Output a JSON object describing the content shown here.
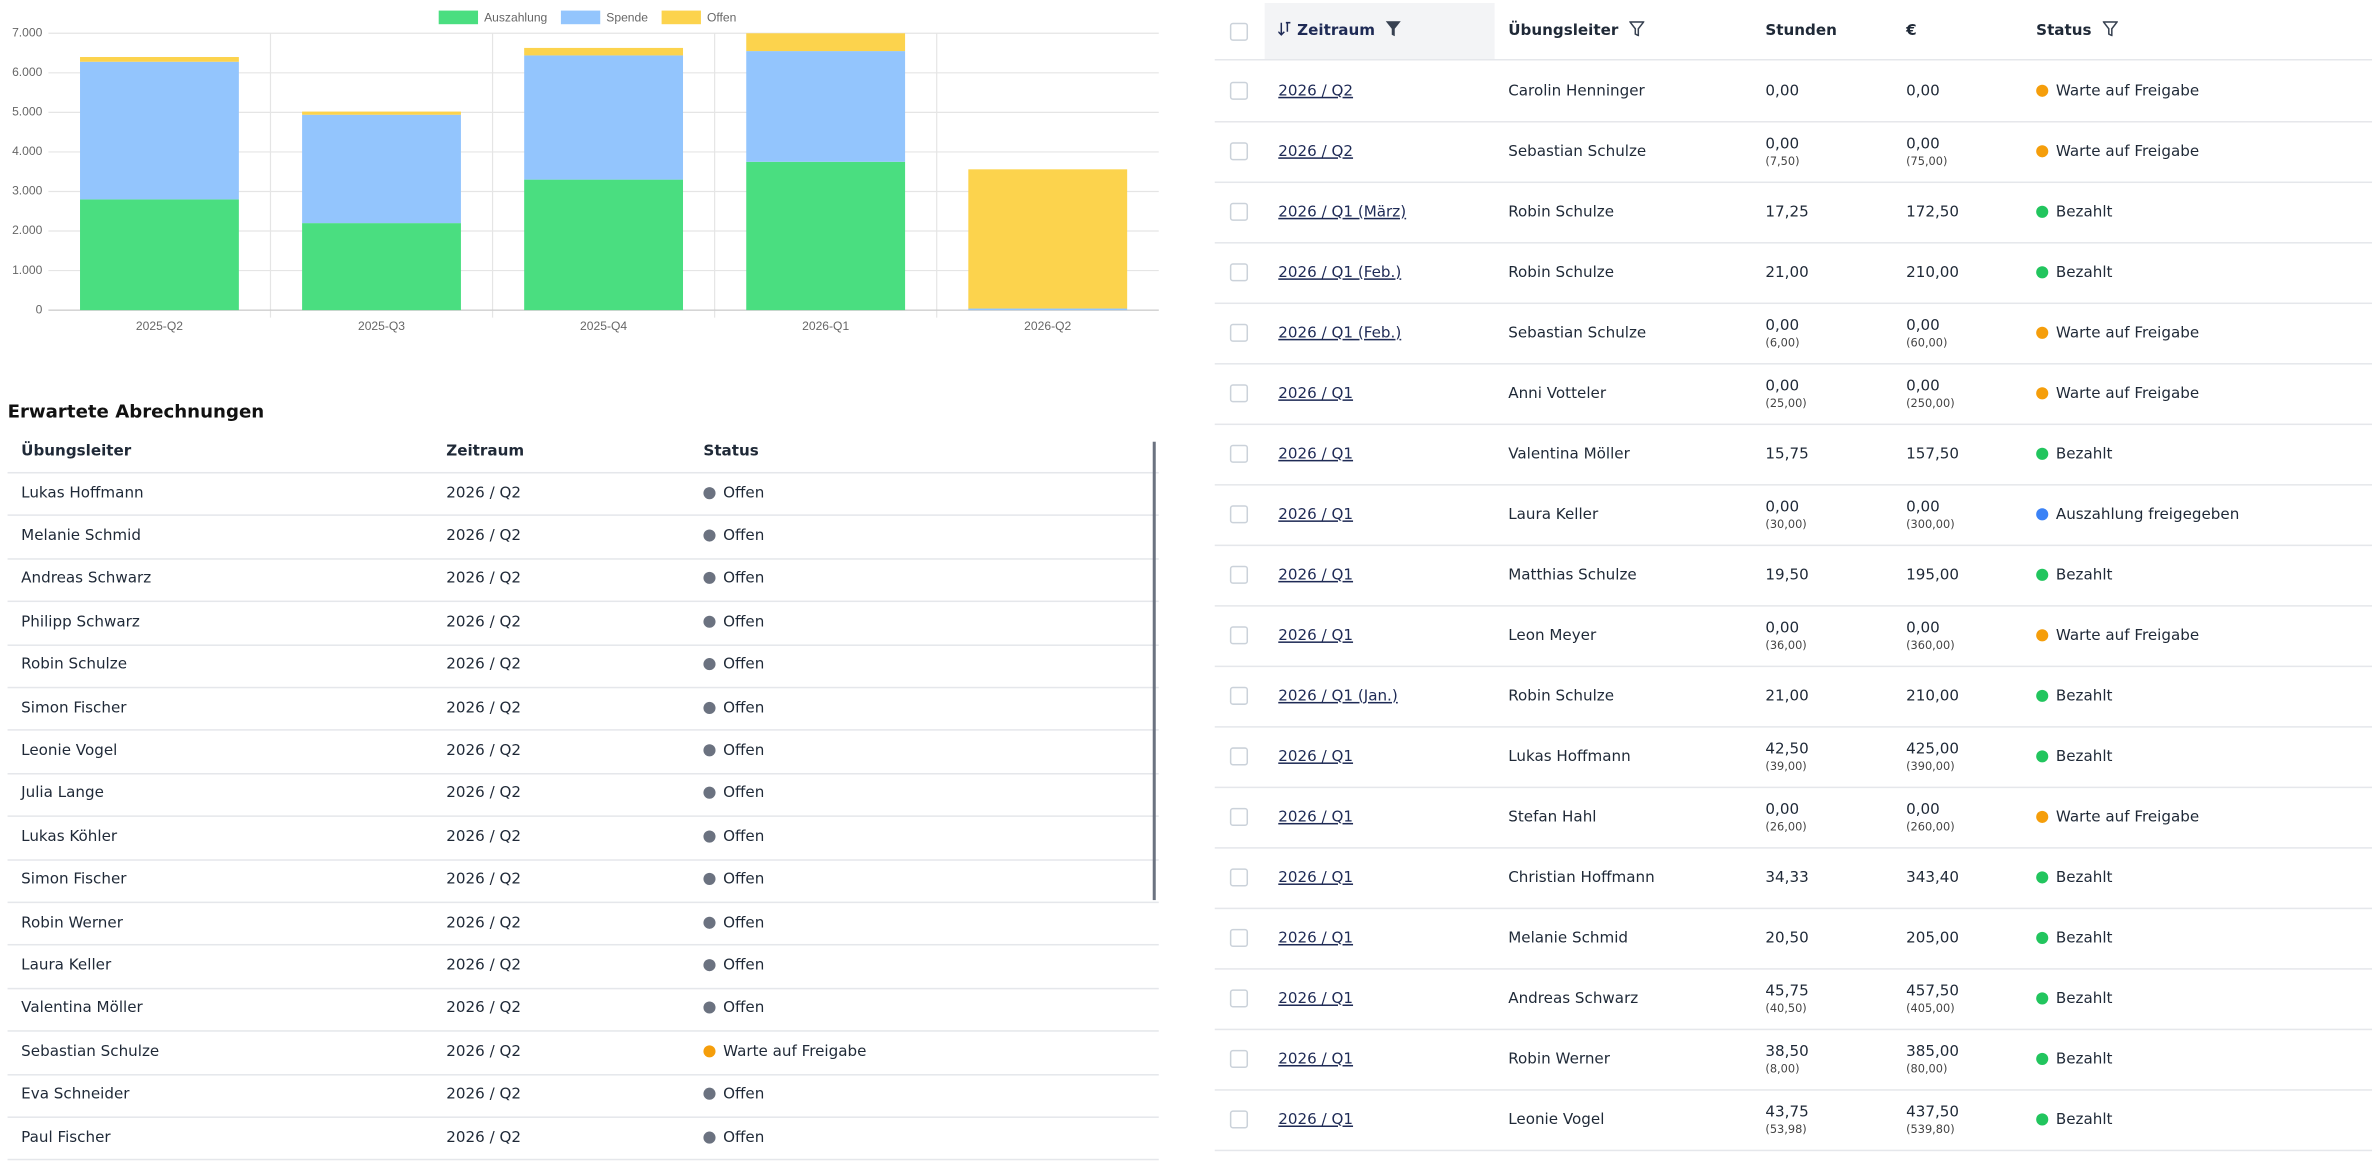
{
  "chart_data": {
    "type": "bar",
    "stacked": true,
    "categories": [
      "2025-Q2",
      "2025-Q3",
      "2025-Q4",
      "2026-Q1",
      "2026-Q2"
    ],
    "series": [
      {
        "name": "Auszahlung",
        "color": "#4ade80",
        "values": [
          2800,
          2200,
          3300,
          3750,
          0
        ]
      },
      {
        "name": "Spende",
        "color": "#93c5fd",
        "values": [
          3480,
          2740,
          3140,
          2800,
          40
        ]
      },
      {
        "name": "Offen",
        "color": "#fcd34d",
        "values": [
          120,
          80,
          190,
          450,
          3520
        ]
      }
    ],
    "ylim": [
      0,
      7000
    ],
    "yticks": [
      0,
      {
        "value": 1000,
        "label": "1.000"
      },
      {
        "value": 2000,
        "label": "2.000"
      },
      {
        "value": 3000,
        "label": "3.000"
      },
      {
        "value": 4000,
        "label": "4.000"
      },
      {
        "value": 5000,
        "label": "5.000"
      },
      {
        "value": 6000,
        "label": "6.000"
      },
      {
        "value": 7000,
        "label": "7.000"
      }
    ],
    "grid": true,
    "legend": "top"
  },
  "expected": {
    "title": "Erwartete Abrechnungen",
    "columns": [
      "Übungsleiter",
      "Zeitraum",
      "Status"
    ],
    "rows": [
      {
        "name": "Lukas Hoffmann",
        "period": "2026 / Q2",
        "status": "Offen",
        "dot": "#6b7280"
      },
      {
        "name": "Melanie Schmid",
        "period": "2026 / Q2",
        "status": "Offen",
        "dot": "#6b7280"
      },
      {
        "name": "Andreas Schwarz",
        "period": "2026 / Q2",
        "status": "Offen",
        "dot": "#6b7280"
      },
      {
        "name": "Philipp Schwarz",
        "period": "2026 / Q2",
        "status": "Offen",
        "dot": "#6b7280"
      },
      {
        "name": "Robin Schulze",
        "period": "2026 / Q2",
        "status": "Offen",
        "dot": "#6b7280"
      },
      {
        "name": "Simon Fischer",
        "period": "2026 / Q2",
        "status": "Offen",
        "dot": "#6b7280"
      },
      {
        "name": "Leonie Vogel",
        "period": "2026 / Q2",
        "status": "Offen",
        "dot": "#6b7280"
      },
      {
        "name": "Julia Lange",
        "period": "2026 / Q2",
        "status": "Offen",
        "dot": "#6b7280"
      },
      {
        "name": "Lukas Köhler",
        "period": "2026 / Q2",
        "status": "Offen",
        "dot": "#6b7280"
      },
      {
        "name": "Simon Fischer",
        "period": "2026 / Q2",
        "status": "Offen",
        "dot": "#6b7280"
      },
      {
        "name": "Robin Werner",
        "period": "2026 / Q2",
        "status": "Offen",
        "dot": "#6b7280"
      },
      {
        "name": "Laura Keller",
        "period": "2026 / Q2",
        "status": "Offen",
        "dot": "#6b7280"
      },
      {
        "name": "Valentina Möller",
        "period": "2026 / Q2",
        "status": "Offen",
        "dot": "#6b7280"
      },
      {
        "name": "Sebastian Schulze",
        "period": "2026 / Q2",
        "status": "Warte auf Freigabe",
        "dot": "#f59e0b"
      },
      {
        "name": "Eva Schneider",
        "period": "2026 / Q2",
        "status": "Offen",
        "dot": "#6b7280"
      },
      {
        "name": "Paul Fischer",
        "period": "2026 / Q2",
        "status": "Offen",
        "dot": "#6b7280"
      }
    ]
  },
  "billing": {
    "columns": [
      "Zeitraum",
      "Übungsleiter",
      "Stunden",
      "€",
      "Status"
    ],
    "rows": [
      {
        "period": "2026 / Q2",
        "name": "Carolin Henninger",
        "hours": "0,00",
        "amount": "0,00",
        "status": "Warte auf Freigabe",
        "dot": "#f59e0b"
      },
      {
        "period": "2026 / Q2",
        "name": "Sebastian Schulze",
        "hours": "0,00",
        "hours_sub": "(7,50)",
        "amount": "0,00",
        "amount_sub": "(75,00)",
        "status": "Warte auf Freigabe",
        "dot": "#f59e0b"
      },
      {
        "period": "2026 / Q1 (März)",
        "name": "Robin Schulze",
        "hours": "17,25",
        "amount": "172,50",
        "status": "Bezahlt",
        "dot": "#22c55e"
      },
      {
        "period": "2026 / Q1 (Feb.)",
        "name": "Robin Schulze",
        "hours": "21,00",
        "amount": "210,00",
        "status": "Bezahlt",
        "dot": "#22c55e"
      },
      {
        "period": "2026 / Q1 (Feb.)",
        "name": "Sebastian Schulze",
        "hours": "0,00",
        "hours_sub": "(6,00)",
        "amount": "0,00",
        "amount_sub": "(60,00)",
        "status": "Warte auf Freigabe",
        "dot": "#f59e0b"
      },
      {
        "period": "2026 / Q1",
        "name": "Anni Votteler",
        "hours": "0,00",
        "hours_sub": "(25,00)",
        "amount": "0,00",
        "amount_sub": "(250,00)",
        "status": "Warte auf Freigabe",
        "dot": "#f59e0b"
      },
      {
        "period": "2026 / Q1",
        "name": "Valentina Möller",
        "hours": "15,75",
        "amount": "157,50",
        "status": "Bezahlt",
        "dot": "#22c55e"
      },
      {
        "period": "2026 / Q1",
        "name": "Laura Keller",
        "hours": "0,00",
        "hours_sub": "(30,00)",
        "amount": "0,00",
        "amount_sub": "(300,00)",
        "status": "Auszahlung freigegeben",
        "dot": "#3b82f6"
      },
      {
        "period": "2026 / Q1",
        "name": "Matthias Schulze",
        "hours": "19,50",
        "amount": "195,00",
        "status": "Bezahlt",
        "dot": "#22c55e"
      },
      {
        "period": "2026 / Q1",
        "name": "Leon Meyer",
        "hours": "0,00",
        "hours_sub": "(36,00)",
        "amount": "0,00",
        "amount_sub": "(360,00)",
        "status": "Warte auf Freigabe",
        "dot": "#f59e0b"
      },
      {
        "period": "2026 / Q1 (Jan.)",
        "name": "Robin Schulze",
        "hours": "21,00",
        "amount": "210,00",
        "status": "Bezahlt",
        "dot": "#22c55e"
      },
      {
        "period": "2026 / Q1",
        "name": "Lukas Hoffmann",
        "hours": "42,50",
        "hours_sub": "(39,00)",
        "amount": "425,00",
        "amount_sub": "(390,00)",
        "status": "Bezahlt",
        "dot": "#22c55e"
      },
      {
        "period": "2026 / Q1",
        "name": "Stefan Hahl",
        "hours": "0,00",
        "hours_sub": "(26,00)",
        "amount": "0,00",
        "amount_sub": "(260,00)",
        "status": "Warte auf Freigabe",
        "dot": "#f59e0b"
      },
      {
        "period": "2026 / Q1",
        "name": "Christian Hoffmann",
        "hours": "34,33",
        "amount": "343,40",
        "status": "Bezahlt",
        "dot": "#22c55e"
      },
      {
        "period": "2026 / Q1",
        "name": "Melanie Schmid",
        "hours": "20,50",
        "amount": "205,00",
        "status": "Bezahlt",
        "dot": "#22c55e"
      },
      {
        "period": "2026 / Q1",
        "name": "Andreas Schwarz",
        "hours": "45,75",
        "hours_sub": "(40,50)",
        "amount": "457,50",
        "amount_sub": "(405,00)",
        "status": "Bezahlt",
        "dot": "#22c55e"
      },
      {
        "period": "2026 / Q1",
        "name": "Robin Werner",
        "hours": "38,50",
        "hours_sub": "(8,00)",
        "amount": "385,00",
        "amount_sub": "(80,00)",
        "status": "Bezahlt",
        "dot": "#22c55e"
      },
      {
        "period": "2026 / Q1",
        "name": "Leonie Vogel",
        "hours": "43,75",
        "hours_sub": "(53,98)",
        "amount": "437,50",
        "amount_sub": "(539,80)",
        "status": "Bezahlt",
        "dot": "#22c55e"
      }
    ]
  }
}
